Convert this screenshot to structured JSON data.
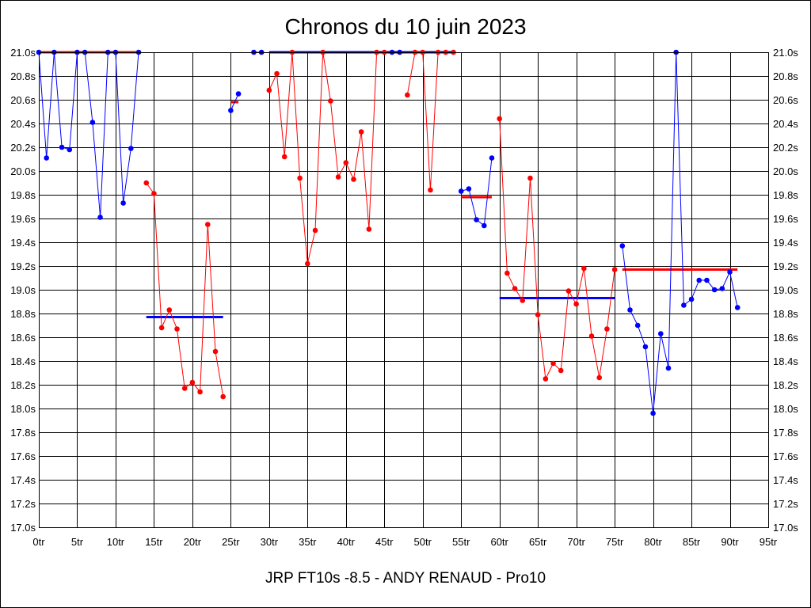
{
  "chart_data": {
    "type": "line",
    "title": "Chronos du 10 juin 2023",
    "caption": "JRP FT10s -8.5 - ANDY RENAUD - Pro10",
    "xlim": [
      0,
      95
    ],
    "ylim": [
      17.0,
      21.0
    ],
    "grid": true,
    "x_ticks": [
      "0tr",
      "5tr",
      "10tr",
      "15tr",
      "20tr",
      "25tr",
      "30tr",
      "35tr",
      "40tr",
      "45tr",
      "50tr",
      "55tr",
      "60tr",
      "65tr",
      "70tr",
      "75tr",
      "80tr",
      "85tr",
      "90tr",
      "95tr"
    ],
    "y_ticks": [
      "17.0s",
      "17.2s",
      "17.4s",
      "17.6s",
      "17.8s",
      "18.0s",
      "18.2s",
      "18.4s",
      "18.6s",
      "18.8s",
      "19.0s",
      "19.2s",
      "19.4s",
      "19.6s",
      "19.8s",
      "20.0s",
      "20.2s",
      "20.4s",
      "20.6s",
      "20.8s",
      "21.0s"
    ],
    "colors": {
      "blue": "#0000ff",
      "red": "#ff0000"
    },
    "series": [
      {
        "color": "blue",
        "points": [
          [
            0,
            21.0
          ],
          [
            1,
            20.11
          ],
          [
            2,
            21.0
          ],
          [
            3,
            20.2
          ],
          [
            4,
            20.18
          ],
          [
            5,
            21.0
          ],
          [
            6,
            21.0
          ],
          [
            7,
            20.41
          ],
          [
            8,
            19.61
          ],
          [
            9,
            21.0
          ],
          [
            10,
            21.0
          ],
          [
            11,
            19.73
          ],
          [
            12,
            20.19
          ],
          [
            13,
            21.0
          ]
        ]
      },
      {
        "color": "red",
        "points": [
          [
            14,
            19.9
          ],
          [
            15,
            19.81
          ],
          [
            16,
            18.68
          ],
          [
            17,
            18.83
          ],
          [
            18,
            18.67
          ],
          [
            19,
            18.17
          ],
          [
            20,
            18.22
          ],
          [
            21,
            18.14
          ],
          [
            22,
            19.55
          ],
          [
            23,
            18.48
          ],
          [
            24,
            18.1
          ]
        ]
      },
      {
        "color": "blue",
        "points": [
          [
            25,
            20.51
          ],
          [
            26,
            20.65
          ]
        ]
      },
      {
        "color": "blue",
        "points": [
          [
            28,
            21.0
          ],
          [
            29,
            21.0
          ]
        ]
      },
      {
        "color": "red",
        "points": [
          [
            30,
            20.68
          ],
          [
            31,
            20.82
          ],
          [
            32,
            20.12
          ],
          [
            33,
            21.0
          ],
          [
            34,
            19.94
          ],
          [
            35,
            19.22
          ],
          [
            36,
            19.5
          ],
          [
            37,
            21.0
          ],
          [
            38,
            20.59
          ],
          [
            39,
            19.95
          ],
          [
            40,
            20.07
          ],
          [
            41,
            19.93
          ],
          [
            42,
            20.33
          ],
          [
            43,
            19.51
          ],
          [
            44,
            21.0
          ]
        ]
      },
      {
        "color": "red",
        "points": [
          [
            45,
            21.0
          ]
        ]
      },
      {
        "color": "blue",
        "points": [
          [
            46,
            21.0
          ]
        ]
      },
      {
        "color": "blue",
        "points": [
          [
            47,
            21.0
          ]
        ]
      },
      {
        "color": "red",
        "points": [
          [
            48,
            20.64
          ],
          [
            49,
            21.0
          ],
          [
            50,
            21.0
          ],
          [
            51,
            19.84
          ],
          [
            52,
            21.0
          ]
        ]
      },
      {
        "color": "red",
        "points": [
          [
            53,
            21.0
          ]
        ]
      },
      {
        "color": "red",
        "points": [
          [
            54,
            21.0
          ]
        ]
      },
      {
        "color": "blue",
        "points": [
          [
            55,
            19.83
          ],
          [
            56,
            19.85
          ],
          [
            57,
            19.59
          ],
          [
            58,
            19.54
          ],
          [
            59,
            20.11
          ]
        ]
      },
      {
        "color": "red",
        "points": [
          [
            60,
            20.44
          ],
          [
            61,
            19.14
          ],
          [
            62,
            19.01
          ],
          [
            63,
            18.91
          ],
          [
            64,
            19.94
          ],
          [
            65,
            18.79
          ],
          [
            66,
            18.25
          ],
          [
            67,
            18.38
          ],
          [
            68,
            18.32
          ],
          [
            69,
            18.99
          ],
          [
            70,
            18.88
          ],
          [
            71,
            19.18
          ],
          [
            72,
            18.61
          ],
          [
            73,
            18.26
          ],
          [
            74,
            18.67
          ],
          [
            75,
            19.17
          ]
        ]
      },
      {
        "color": "blue",
        "points": [
          [
            76,
            19.37
          ],
          [
            77,
            18.83
          ],
          [
            78,
            18.7
          ],
          [
            79,
            18.52
          ],
          [
            80,
            17.96
          ],
          [
            81,
            18.63
          ],
          [
            82,
            18.34
          ],
          [
            83,
            21.0
          ],
          [
            84,
            18.87
          ],
          [
            85,
            18.92
          ],
          [
            86,
            19.08
          ],
          [
            87,
            19.08
          ],
          [
            88,
            19.0
          ],
          [
            89,
            19.01
          ],
          [
            90,
            19.15
          ],
          [
            91,
            18.85
          ]
        ]
      }
    ],
    "averages": [
      {
        "color": "red",
        "x1": 0,
        "x2": 13,
        "y": 21.0
      },
      {
        "color": "blue",
        "x1": 14,
        "x2": 24,
        "y": 18.77
      },
      {
        "color": "red",
        "x1": 25,
        "x2": 26,
        "y": 20.58
      },
      {
        "color": "blue",
        "x1": 30,
        "x2": 54,
        "y": 21.0
      },
      {
        "color": "red",
        "x1": 55,
        "x2": 59,
        "y": 19.78
      },
      {
        "color": "blue",
        "x1": 60,
        "x2": 75,
        "y": 18.93
      },
      {
        "color": "red",
        "x1": 76,
        "x2": 91,
        "y": 19.17
      }
    ]
  }
}
